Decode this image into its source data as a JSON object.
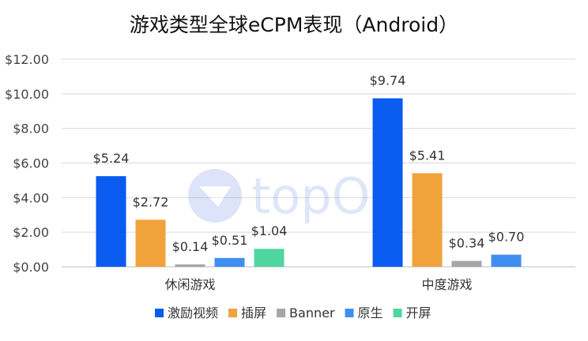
{
  "chart_data": {
    "type": "bar",
    "title": "游戏类型全球eCPM表现（Android）",
    "xlabel": "",
    "ylabel": "",
    "categories": [
      "休闲游戏",
      "中度游戏"
    ],
    "ylim": [
      0,
      12
    ],
    "yticks": [
      "$0.00",
      "$2.00",
      "$4.00",
      "$6.00",
      "$8.00",
      "$10.00",
      "$12.00"
    ],
    "grid": true,
    "legend_position": "bottom",
    "series": [
      {
        "name": "激励视频",
        "color": "#0a5bf0",
        "values": [
          5.24,
          9.74
        ],
        "labels": [
          "$5.24",
          "$9.74"
        ]
      },
      {
        "name": "插屏",
        "color": "#f0a23b",
        "values": [
          2.72,
          5.41
        ],
        "labels": [
          "$2.72",
          "$5.41"
        ]
      },
      {
        "name": "Banner",
        "color": "#a6a6a6",
        "values": [
          0.14,
          0.34
        ],
        "labels": [
          "$0.14",
          "$0.34"
        ]
      },
      {
        "name": "原生",
        "color": "#3e8ff0",
        "values": [
          0.51,
          0.7
        ],
        "labels": [
          "$0.51",
          "$0.70"
        ]
      },
      {
        "name": "开屏",
        "color": "#4fd6a0",
        "values": [
          1.04,
          null
        ],
        "labels": [
          "$1.04",
          ""
        ]
      }
    ]
  },
  "watermark": {
    "text": "topOn"
  }
}
